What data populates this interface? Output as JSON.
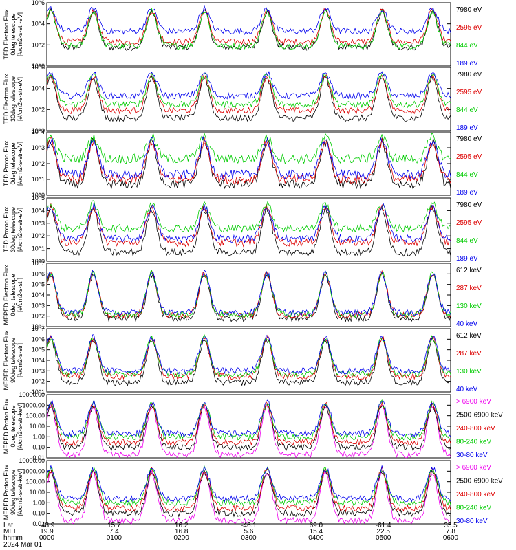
{
  "figure": {
    "date_label": "2024 Mar 01"
  },
  "colors": {
    "black": "#000000",
    "red": "#dd0000",
    "green": "#00cc00",
    "blue": "#0000ee",
    "magenta": "#ee00ee"
  },
  "footer": {
    "row_labels": [
      "Lat",
      "MLT",
      "hhmm"
    ],
    "columns": [
      {
        "lat": "-48.9",
        "mlt": "19.9",
        "hhmm": "0000"
      },
      {
        "lat": "15.7",
        "mlt": "7.4",
        "hhmm": "0100"
      },
      {
        "lat": "16.2",
        "mlt": "16.8",
        "hhmm": "0200"
      },
      {
        "lat": "-46.1",
        "mlt": "5.6",
        "hhmm": "0300"
      },
      {
        "lat": "69.0",
        "mlt": "15.4",
        "hhmm": "0400"
      },
      {
        "lat": "-61.4",
        "mlt": "22.5",
        "hhmm": "0500"
      },
      {
        "lat": "35.5",
        "mlt": "7.8",
        "hhmm": "0600"
      }
    ]
  },
  "chart_data": [
    {
      "type": "line",
      "scale": "log",
      "ylabel": [
        "TED Electron Flux",
        "0deg telescope",
        "[#/cm2-s-str-eV]"
      ],
      "ylim": [
        1,
        1000000
      ],
      "ytick_labels": [
        "10^0",
        "10^2",
        "10^4",
        "10^6"
      ],
      "x_range_hhmm": [
        "0000",
        "0600"
      ],
      "series": [
        {
          "name": "7980 eV",
          "color": "black"
        },
        {
          "name": "2595 eV",
          "color": "red"
        },
        {
          "name": "844 eV",
          "color": "green"
        },
        {
          "name": "189 eV",
          "color": "blue"
        }
      ],
      "approx_levels": {
        "black": 60,
        "red": 200,
        "green": 80,
        "blue": 2000
      }
    },
    {
      "type": "line",
      "scale": "log",
      "ylabel": [
        "TED Electron Flux",
        "30deg telescope",
        "[#/cm2-s-str-eV]"
      ],
      "ylim": [
        1,
        1000000
      ],
      "ytick_labels": [
        "10^0",
        "10^2",
        "10^4",
        "10^6"
      ],
      "x_range_hhmm": [
        "0000",
        "0600"
      ],
      "series": [
        {
          "name": "7980 eV",
          "color": "black"
        },
        {
          "name": "2595 eV",
          "color": "red"
        },
        {
          "name": "844 eV",
          "color": "green"
        },
        {
          "name": "189 eV",
          "color": "blue"
        }
      ],
      "approx_levels": {
        "black": 15,
        "red": 80,
        "green": 300,
        "blue": 2000
      }
    },
    {
      "type": "line",
      "scale": "log",
      "ylabel": [
        "TED Proton Flux",
        "0deg telescope",
        "[#/cm2-s-str-eV]"
      ],
      "ylim": [
        1,
        10000
      ],
      "ytick_labels": [
        "10^0",
        "10^1",
        "10^2",
        "10^3",
        "10^4"
      ],
      "x_range_hhmm": [
        "0000",
        "0600"
      ],
      "series": [
        {
          "name": "7980 eV",
          "color": "black"
        },
        {
          "name": "2595 eV",
          "color": "red"
        },
        {
          "name": "844 eV",
          "color": "green"
        },
        {
          "name": "189 eV",
          "color": "blue"
        }
      ],
      "approx_levels": {
        "black": 5,
        "red": 10,
        "green": 200,
        "blue": 20
      }
    },
    {
      "type": "line",
      "scale": "log",
      "ylabel": [
        "TED Proton Flux",
        "30deg telescope",
        "[#/cm2-s-str-eV]"
      ],
      "ylim": [
        1,
        100000
      ],
      "ytick_labels": [
        "10^0",
        "10^1",
        "10^2",
        "10^3",
        "10^4",
        "10^5"
      ],
      "x_range_hhmm": [
        "0000",
        "0600"
      ],
      "series": [
        {
          "name": "7980 eV",
          "color": "black"
        },
        {
          "name": "2595 eV",
          "color": "red"
        },
        {
          "name": "844 eV",
          "color": "green"
        },
        {
          "name": "189 eV",
          "color": "blue"
        }
      ],
      "approx_levels": {
        "black": 5,
        "red": 30,
        "green": 400,
        "blue": 60
      }
    },
    {
      "type": "line",
      "scale": "log",
      "ylabel": [
        "MEPED Electron Flux",
        "0deg telescope",
        "[#/cm2-s-str]"
      ],
      "ylim": [
        10,
        10000000
      ],
      "ytick_labels": [
        "10^1",
        "10^2",
        "10^3",
        "10^4",
        "10^5",
        "10^6",
        "10^7"
      ],
      "x_range_hhmm": [
        "0000",
        "0600"
      ],
      "series": [
        {
          "name": "612 keV",
          "color": "black"
        },
        {
          "name": "287 keV",
          "color": "red"
        },
        {
          "name": "130 keV",
          "color": "green"
        },
        {
          "name": "40 keV",
          "color": "blue"
        }
      ],
      "approx_levels": {
        "black": 60,
        "red": 120,
        "green": 150,
        "blue": 200
      }
    },
    {
      "type": "line",
      "scale": "log",
      "ylabel": [
        "MEPED Electron Flux",
        "90deg telescope",
        "[#/cm2-s-str]"
      ],
      "ylim": [
        10,
        10000000
      ],
      "ytick_labels": [
        "10^1",
        "10^2",
        "10^3",
        "10^4",
        "10^5",
        "10^6",
        "10^7"
      ],
      "x_range_hhmm": [
        "0000",
        "0600"
      ],
      "series": [
        {
          "name": "612 keV",
          "color": "black"
        },
        {
          "name": "287 keV",
          "color": "red"
        },
        {
          "name": "130 keV",
          "color": "green"
        },
        {
          "name": "40 keV",
          "color": "blue"
        }
      ],
      "approx_levels": {
        "black": 80,
        "red": 300,
        "green": 500,
        "blue": 1000
      }
    },
    {
      "type": "line",
      "scale": "log",
      "ylabel": [
        "MEPED Proton Flux",
        "0deg telescope",
        "[#/cm2-s-str-keV]"
      ],
      "ylim": [
        0.01,
        10000
      ],
      "ytick_labels": [
        "0.01",
        "0.10",
        "1.00",
        "10.00",
        "100.00",
        "1000.00",
        "10000.00"
      ],
      "x_range_hhmm": [
        "0000",
        "0600"
      ],
      "series": [
        {
          "name": "> 6900 keV",
          "color": "magenta"
        },
        {
          "name": "2500-6900 keV",
          "color": "black"
        },
        {
          "name": "240-800 keV",
          "color": "red"
        },
        {
          "name": "80-240 keV",
          "color": "green"
        },
        {
          "name": "30-80 keV",
          "color": "blue"
        }
      ],
      "approx_levels": {
        "magenta": 0.02,
        "black": 0.1,
        "red": 0.3,
        "green": 1.0,
        "blue": 2.0
      }
    },
    {
      "type": "line",
      "scale": "log",
      "ylabel": [
        "MEPED Proton Flux",
        "90deg telescope",
        "[#/cm2-s-str-keV]"
      ],
      "ylim": [
        0.01,
        10000
      ],
      "ytick_labels": [
        "0.01",
        "0.10",
        "1.00",
        "10.00",
        "100.00",
        "1000.00",
        "10000.00"
      ],
      "x_range_hhmm": [
        "0000",
        "0600"
      ],
      "series": [
        {
          "name": "> 6900 keV",
          "color": "magenta"
        },
        {
          "name": "2500-6900 keV",
          "color": "black"
        },
        {
          "name": "240-800 keV",
          "color": "red"
        },
        {
          "name": "80-240 keV",
          "color": "green"
        },
        {
          "name": "30-80 keV",
          "color": "blue"
        }
      ],
      "approx_levels": {
        "magenta": 0.02,
        "black": 0.1,
        "red": 0.3,
        "green": 1.0,
        "blue": 2.5
      }
    }
  ]
}
